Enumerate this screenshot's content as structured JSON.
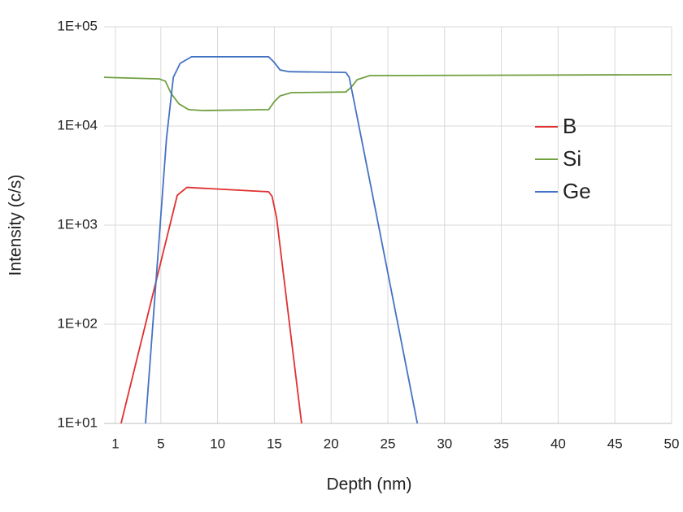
{
  "chart_data": {
    "type": "line",
    "x_label": "Depth (nm)",
    "y_label": "Intensity (c/s)",
    "xlim": [
      0,
      50
    ],
    "xticks": [
      1,
      5,
      10,
      15,
      20,
      25,
      30,
      35,
      40,
      45,
      50
    ],
    "ylim": [
      10,
      100000
    ],
    "log_y": true,
    "yticks": [
      {
        "value": 10,
        "label": "1E+01"
      },
      {
        "value": 100,
        "label": "1E+02"
      },
      {
        "value": 1000,
        "label": "1E+03"
      },
      {
        "value": 10000,
        "label": "1E+04"
      },
      {
        "value": 100000,
        "label": "1E+05"
      }
    ],
    "grid": true,
    "legend": "right",
    "series": [
      {
        "name": "B",
        "color": "#e03030",
        "x": [
          1.5,
          6.45,
          7.3,
          14.5,
          14.8,
          15.2,
          17.4
        ],
        "values": [
          10,
          2000,
          2400,
          2170,
          1950,
          1180,
          10
        ]
      },
      {
        "name": "Si",
        "color": "#70a040",
        "x": [
          0,
          4.87,
          5.4,
          5.9,
          6.6,
          7.45,
          8.7,
          14.5,
          15,
          15.5,
          16.5,
          21.3,
          21.8,
          22.3,
          23.4,
          50
        ],
        "values": [
          31000,
          29800,
          28300,
          21300,
          16700,
          14600,
          14300,
          14600,
          17600,
          20100,
          21700,
          22000,
          24800,
          29300,
          32200,
          32900
        ]
      },
      {
        "name": "Ge",
        "color": "#4472c4",
        "x": [
          3.65,
          4.87,
          5.5,
          6.1,
          6.7,
          7.7,
          14.5,
          15,
          15.5,
          16.3,
          21.3,
          21.6,
          22.1,
          23.8,
          27.6
        ],
        "values": [
          10,
          780,
          7530,
          31000,
          42800,
          49800,
          49800,
          43700,
          36800,
          35300,
          34700,
          31000,
          16000,
          1660,
          10
        ]
      }
    ]
  }
}
